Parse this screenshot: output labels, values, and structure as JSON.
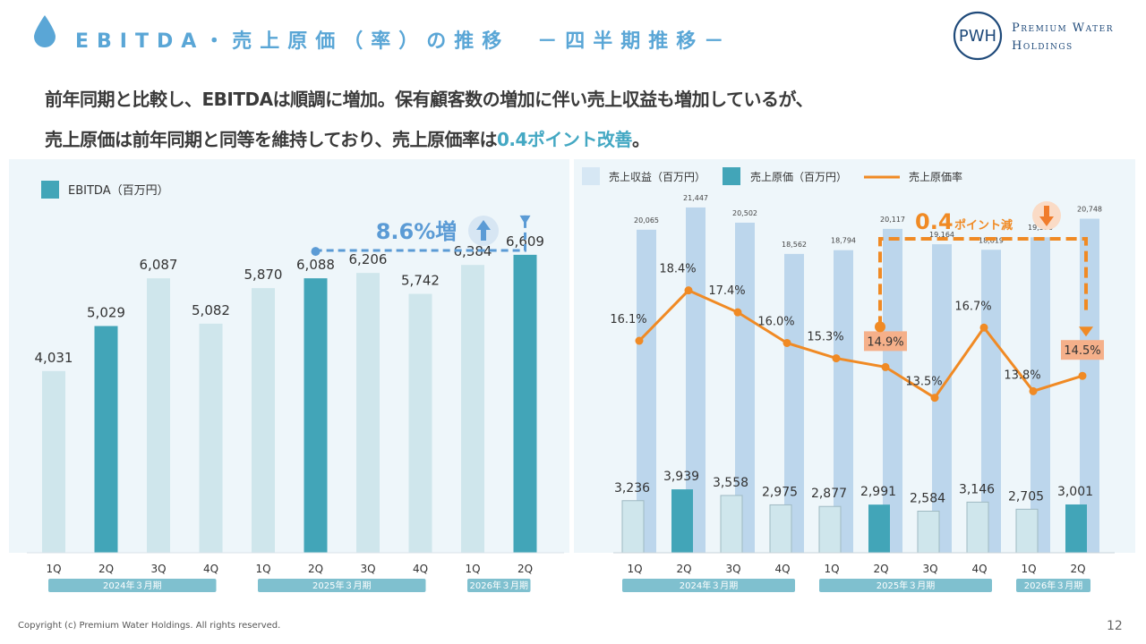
{
  "header": {
    "title": "EBITDA・売上原価（率）の推移　－四半期推移－",
    "logo_line1": "Premium Water",
    "logo_line2": "Holdings",
    "logo_monogram": "PWH"
  },
  "headline": {
    "line1": "前年同期と比較し、EBITDAは順調に増加。保有顧客数の増加に伴い売上収益も増加しているが、",
    "line2_prefix": "売上原価は前年同期と同等を維持しており、売上原価率は",
    "line2_accent": "0.4ポイント改善",
    "line2_suffix": "。"
  },
  "colors": {
    "title_blue": "#5aa6d6",
    "teal_dark": "#42a5b8",
    "teal_light": "#cfe6ec",
    "revenue_blue": "#bcd6ec",
    "orange": "#f08a24",
    "label_orange_bg": "#f5b08a",
    "period_band": "#7fc0cf",
    "increase_blue": "#5b9bd5"
  },
  "chart_data": [
    {
      "type": "bar",
      "title": "",
      "legend": [
        {
          "label": "EBITDA（百万円）",
          "color": "#42a5b8"
        }
      ],
      "categories": [
        "1Q",
        "2Q",
        "3Q",
        "4Q",
        "1Q",
        "2Q",
        "3Q",
        "4Q",
        "1Q",
        "2Q"
      ],
      "highlight": [
        false,
        true,
        false,
        false,
        false,
        true,
        false,
        false,
        false,
        true
      ],
      "series": [
        {
          "name": "EBITDA（百万円）",
          "values": [
            4031,
            5029,
            6087,
            5082,
            5870,
            6088,
            6206,
            5742,
            6384,
            6609
          ],
          "labels": [
            "4,031",
            "5,029",
            "6,087",
            "5,082",
            "5,870",
            "6,088",
            "6,206",
            "5,742",
            "6,384",
            "6,609"
          ]
        }
      ],
      "periods": [
        {
          "label": "2024年３月期",
          "span": [
            0,
            3
          ]
        },
        {
          "label": "2025年３月期",
          "span": [
            4,
            7
          ]
        },
        {
          "label": "2026年３月期",
          "span": [
            8,
            9
          ]
        }
      ],
      "annotation": {
        "text": "8.6%増",
        "from_index": 5,
        "to_index": 9,
        "direction": "up"
      },
      "ylim": [
        0,
        7400
      ],
      "grid": false
    },
    {
      "type": "bar+line",
      "legend": [
        {
          "label": "売上収益（百万円）",
          "color": "#d6e7f4"
        },
        {
          "label": "売上原価（百万円）",
          "color": "#42a5b8"
        },
        {
          "label": "売上原価率",
          "color": "#f08a24"
        }
      ],
      "categories": [
        "1Q",
        "2Q",
        "3Q",
        "4Q",
        "1Q",
        "2Q",
        "3Q",
        "4Q",
        "1Q",
        "2Q"
      ],
      "highlight": [
        false,
        true,
        false,
        false,
        false,
        true,
        false,
        false,
        false,
        true
      ],
      "series": [
        {
          "name": "売上収益（百万円）",
          "values": [
            20065,
            21447,
            20502,
            18562,
            18794,
            20117,
            19164,
            18819,
            19598,
            20748
          ],
          "labels": [
            "20,065",
            "21,447",
            "20,502",
            "18,562",
            "18,794",
            "20,117",
            "19,164",
            "18,819",
            "19,598",
            "20,748"
          ]
        },
        {
          "name": "売上原価（百万円）",
          "values": [
            3236,
            3939,
            3558,
            2975,
            2877,
            2991,
            2584,
            3146,
            2705,
            3001
          ],
          "labels": [
            "3,236",
            "3,939",
            "3,558",
            "2,975",
            "2,877",
            "2,991",
            "2,584",
            "3,146",
            "2,705",
            "3,001"
          ]
        },
        {
          "name": "売上原価率",
          "values": [
            16.1,
            18.4,
            17.4,
            16.0,
            15.3,
            14.9,
            13.5,
            16.7,
            13.8,
            14.5
          ],
          "labels": [
            "16.1%",
            "18.4%",
            "17.4%",
            "16.0%",
            "15.3%",
            "14.9%",
            "13.5%",
            "16.7%",
            "13.8%",
            "14.5%"
          ]
        }
      ],
      "periods": [
        {
          "label": "2024年３月期",
          "span": [
            0,
            3
          ]
        },
        {
          "label": "2025年３月期",
          "span": [
            4,
            7
          ]
        },
        {
          "label": "2026年３月期",
          "span": [
            8,
            9
          ]
        }
      ],
      "annotation": {
        "text_number": "0.4",
        "text_unit": "ポイント減",
        "from_index": 5,
        "to_index": 9,
        "direction": "down"
      },
      "ylim_bars": [
        0,
        22500
      ],
      "ylim_rate": [
        0,
        30
      ],
      "grid": false
    }
  ],
  "footer": {
    "copyright": "Copyright (c) Premium Water Holdings. All rights reserved.",
    "page": "12"
  }
}
